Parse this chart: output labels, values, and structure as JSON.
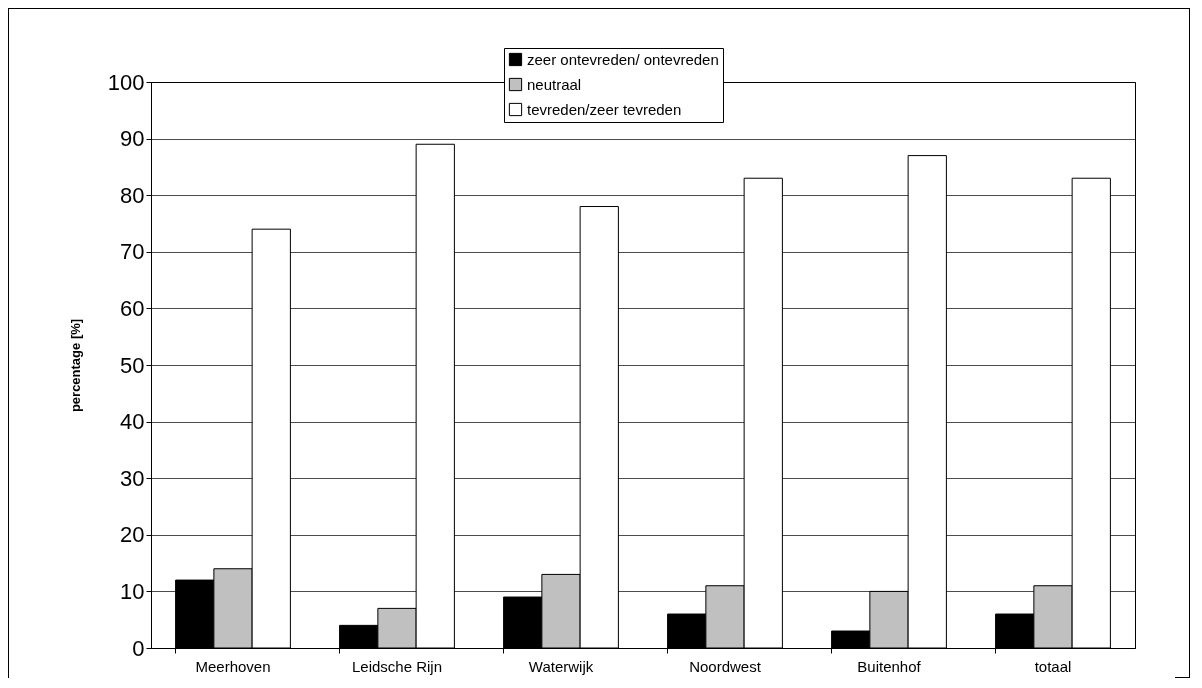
{
  "chart_data": {
    "type": "bar",
    "ylabel": "percentage [%]",
    "categories": [
      "Meerhoven",
      "Leidsche Rijn",
      "Waterwijk",
      "Noordwest",
      "Buitenhof",
      "totaal"
    ],
    "series": [
      {
        "name": "zeer ontevreden/ ontevreden",
        "color": "#000000",
        "values": [
          12,
          4,
          9,
          6,
          3,
          6
        ]
      },
      {
        "name": "neutraal",
        "color": "#c0c0c0",
        "values": [
          14,
          7,
          13,
          11,
          10,
          11
        ]
      },
      {
        "name": "tevreden/zeer tevreden",
        "color": "#ffffff",
        "values": [
          74,
          89,
          78,
          83,
          87,
          83
        ]
      }
    ],
    "ylim": [
      0,
      100
    ],
    "yticks": [
      0,
      10,
      20,
      30,
      40,
      50,
      60,
      70,
      80,
      90,
      100
    ],
    "grid": "y",
    "legend": "top"
  }
}
